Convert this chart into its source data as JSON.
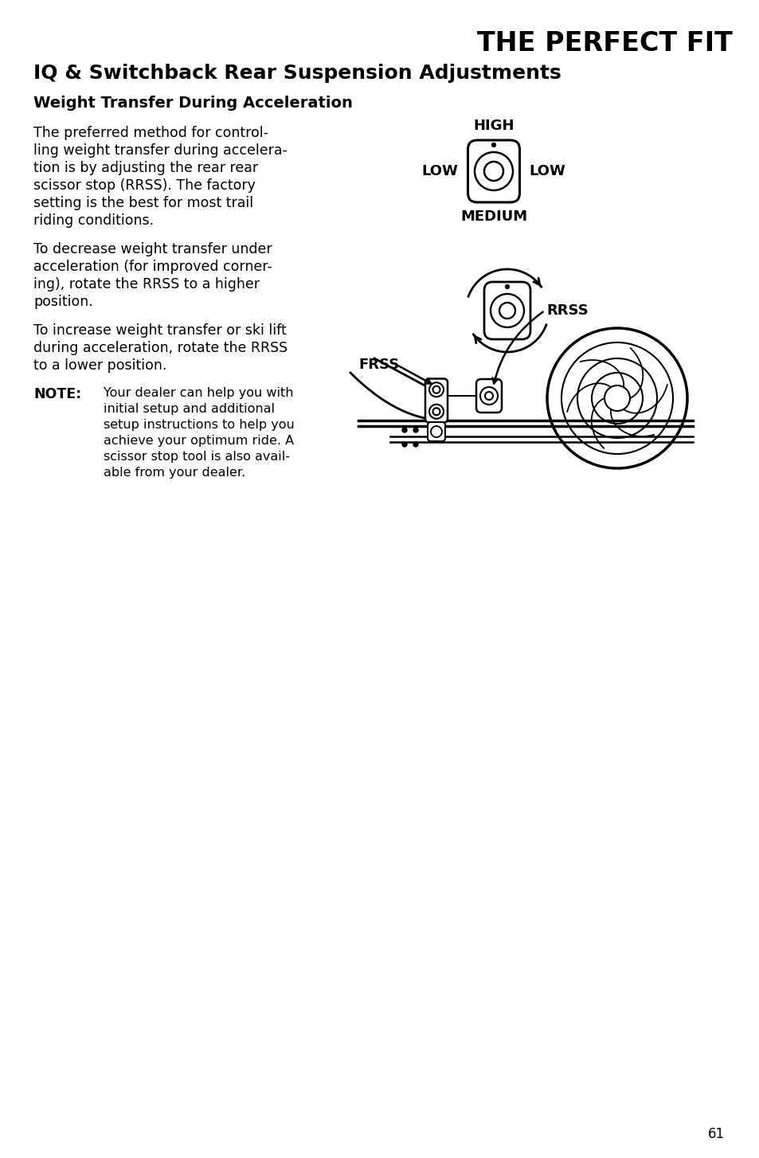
{
  "title_right": "THE PERFECT FIT",
  "subtitle": "IQ & Switchback Rear Suspension Adjustments",
  "section_title": "Weight Transfer During Acceleration",
  "para1_lines": [
    "The preferred method for control-",
    "ling weight transfer during accelera-",
    "tion is by adjusting the rear rear",
    "scissor stop (RRSS). The factory",
    "setting is the best for most trail",
    "riding conditions."
  ],
  "para2_lines": [
    "To decrease weight transfer under",
    "acceleration (for improved corner-",
    "ing), rotate the RRSS to a higher",
    "position."
  ],
  "para3_lines": [
    "To increase weight transfer or ski lift",
    "during acceleration, rotate the RRSS",
    "to a lower position."
  ],
  "note_label": "NOTE:",
  "note_lines": [
    "Your dealer can help you with",
    "initial setup and additional",
    "setup instructions to help you",
    "achieve your optimum ride. A",
    "scissor stop tool is also avail-",
    "able from your dealer."
  ],
  "page_number": "61",
  "background_color": "#ffffff",
  "text_color": "#000000"
}
